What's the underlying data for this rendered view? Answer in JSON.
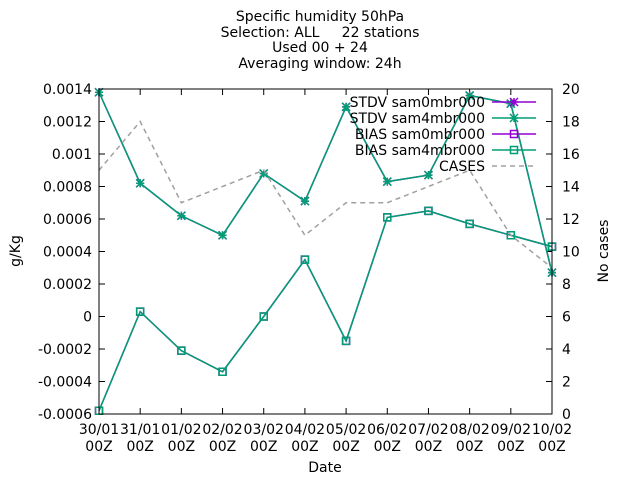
{
  "chart_data": {
    "type": "line",
    "title": "Specific humidity 50hPa",
    "subtitle_lines": [
      "Selection: ALL     22 stations",
      "Used 00 + 24",
      "Averaging window: 24h"
    ],
    "xlabel": "Date",
    "ylabel": "g/Kg",
    "y2label": "No cases",
    "categories": [
      "30/01\n00Z",
      "31/01\n00Z",
      "01/02\n00Z",
      "02/02\n00Z",
      "03/02\n00Z",
      "04/02\n00Z",
      "05/02\n00Z",
      "06/02\n00Z",
      "07/02\n00Z",
      "08/02\n00Z",
      "09/02\n00Z",
      "10/02\n00Z"
    ],
    "ylim": [
      -0.0006,
      0.0014
    ],
    "y2lim": [
      0,
      20
    ],
    "yticks": [
      "-0.0006",
      "-0.0004",
      "-0.0002",
      "0",
      "0.0002",
      "0.0004",
      "0.0006",
      "0.0008",
      "0.001",
      "0.0012",
      "0.0014"
    ],
    "y2ticks": [
      "0",
      "2",
      "4",
      "6",
      "8",
      "10",
      "12",
      "14",
      "16",
      "18",
      "20"
    ],
    "legend_position": "top-right",
    "series": [
      {
        "name": "STDV sam0mbr000",
        "axis": "y",
        "color": "#9400d3",
        "marker": "star",
        "dash": false,
        "values": [
          0.00138,
          0.00082,
          0.00062,
          0.0005,
          0.00088,
          0.00071,
          0.00129,
          0.00083,
          0.00087,
          0.00136,
          0.00131,
          0.00027
        ]
      },
      {
        "name": "STDV sam4mbr000",
        "axis": "y",
        "color": "#009e73",
        "marker": "star",
        "dash": false,
        "values": [
          0.00138,
          0.00082,
          0.00062,
          0.0005,
          0.00088,
          0.00071,
          0.00129,
          0.00083,
          0.00087,
          0.00136,
          0.00131,
          0.00027
        ]
      },
      {
        "name": "BIAS sam0mbr000",
        "axis": "y",
        "color": "#9400d3",
        "marker": "square",
        "dash": false,
        "values": [
          -0.00058,
          3e-05,
          -0.00021,
          -0.00034,
          0.0,
          0.00035,
          -0.00015,
          0.00061,
          0.00065,
          0.00057,
          0.0005,
          0.00043
        ]
      },
      {
        "name": "BIAS sam4mbr000",
        "axis": "y",
        "color": "#009e73",
        "marker": "square",
        "dash": false,
        "values": [
          -0.00058,
          3e-05,
          -0.00021,
          -0.00034,
          0.0,
          0.00035,
          -0.00015,
          0.00061,
          0.00065,
          0.00057,
          0.0005,
          0.00043
        ]
      },
      {
        "name": "CASES",
        "axis": "y2",
        "color": "#a0a0a0",
        "marker": "none",
        "dash": true,
        "values": [
          15,
          18,
          13,
          14,
          15,
          11,
          13,
          13,
          14,
          15,
          11,
          9
        ]
      }
    ]
  }
}
